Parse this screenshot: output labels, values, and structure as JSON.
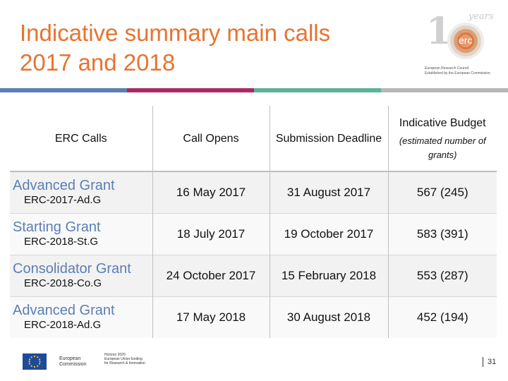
{
  "title": {
    "line1": "Indicative summary main calls",
    "line2": "2017 and 2018"
  },
  "logo": {
    "years_text": "years",
    "name": "erc",
    "council_line": "European Research Council",
    "sub_line": "Established by the European Commission"
  },
  "colors": {
    "title": "#e8732e",
    "call_name": "#5b7fb4",
    "bar": [
      "#5b7fb4",
      "#ad2a61",
      "#5bb298",
      "#b7b7b7"
    ]
  },
  "table": {
    "headers": {
      "calls": "ERC Calls",
      "opens": "Call Opens",
      "deadline": "Submission Deadline",
      "budget": "Indicative Budget",
      "budget_sub": "(estimated number of grants)"
    },
    "rows": [
      {
        "name": "Advanced Grant",
        "code": "ERC-2017-Ad.G",
        "opens": "16 May 2017",
        "deadline": "31 August 2017",
        "budget": "567 (245)"
      },
      {
        "name": "Starting Grant",
        "code": "ERC-2018-St.G",
        "opens": "18 July 2017",
        "deadline": "19 October 2017",
        "budget": "583 (391)"
      },
      {
        "name": "Consolidator Grant",
        "code": "ERC-2018-Co.G",
        "opens": "24 October 2017",
        "deadline": "15 February 2018",
        "budget": "553 (287)"
      },
      {
        "name": "Advanced Grant",
        "code": "ERC-2018-Ad.G",
        "opens": "17 May 2018",
        "deadline": "30 August 2018",
        "budget": "452 (194)"
      }
    ]
  },
  "footer": {
    "eu_line1": "European",
    "eu_line2": "Commission",
    "h2020_line1": "Horizon 2020",
    "h2020_line2": "European Union funding",
    "h2020_line3": "for Research & Innovation",
    "page_number": "31"
  }
}
